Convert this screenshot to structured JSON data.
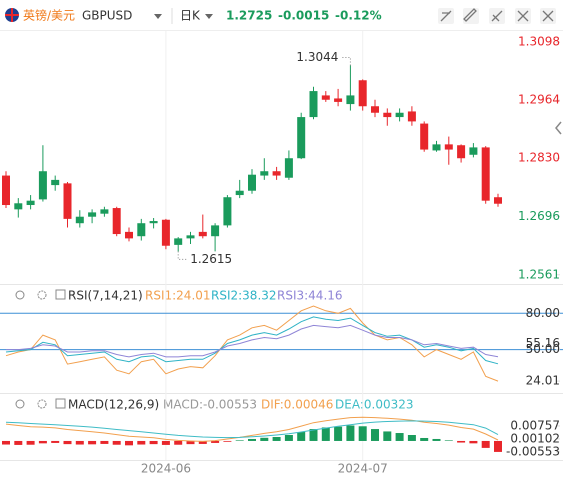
{
  "header": {
    "pair_name": "英镑/美元",
    "symbol": "GBPUSD",
    "period": "日K",
    "price": "1.2725",
    "change": "-0.0015",
    "change_pct": "-0.12%"
  },
  "chart_data": [
    {
      "type": "candlestick",
      "categories": [
        null,
        null,
        null,
        null,
        null,
        null,
        null,
        null,
        null,
        null,
        null,
        null,
        null,
        "2024-06",
        null,
        null,
        null,
        null,
        null,
        null,
        null,
        null,
        null,
        null,
        null,
        null,
        null,
        null,
        null,
        "2024-07",
        null,
        null,
        null,
        null,
        null,
        null,
        null,
        null,
        null,
        null,
        null
      ],
      "open": [
        1.279,
        1.2712,
        1.2722,
        1.2735,
        1.2768,
        1.2772,
        1.268,
        1.2695,
        1.2702,
        1.2715,
        1.266,
        1.265,
        1.268,
        1.2688,
        1.263,
        1.2645,
        1.266,
        1.265,
        1.2675,
        1.2745,
        1.2755,
        1.279,
        1.28,
        1.2785,
        1.283,
        1.2925,
        1.2975,
        1.2968,
        1.2955,
        1.301,
        1.295,
        1.2935,
        1.2925,
        1.2938,
        1.291,
        1.2848,
        1.2862,
        1.286,
        1.2838,
        1.2855,
        1.274
      ],
      "high": [
        1.28,
        1.2738,
        1.2745,
        1.286,
        1.279,
        1.2775,
        1.271,
        1.2712,
        1.2718,
        1.2718,
        1.267,
        1.269,
        1.2692,
        1.269,
        1.2648,
        1.266,
        1.27,
        1.268,
        1.2745,
        1.278,
        1.2805,
        1.283,
        1.281,
        1.2848,
        1.2935,
        1.2995,
        1.2985,
        1.299,
        1.3044,
        1.3012,
        1.2965,
        1.2945,
        1.2945,
        1.295,
        1.2915,
        1.287,
        1.288,
        1.2862,
        1.2865,
        1.2858,
        1.2748
      ],
      "low": [
        1.2715,
        1.2693,
        1.2712,
        1.273,
        1.2755,
        1.267,
        1.267,
        1.268,
        1.2695,
        1.265,
        1.2638,
        1.264,
        1.2668,
        1.262,
        1.2615,
        1.2632,
        1.2645,
        1.2615,
        1.267,
        1.2738,
        1.2748,
        1.278,
        1.278,
        1.278,
        1.2828,
        1.292,
        1.296,
        1.295,
        1.294,
        1.294,
        1.2925,
        1.2905,
        1.2915,
        1.2905,
        1.2845,
        1.2845,
        1.2815,
        1.282,
        1.2832,
        1.2725,
        1.2718
      ],
      "close": [
        1.2722,
        1.2726,
        1.2732,
        1.28,
        1.278,
        1.269,
        1.2695,
        1.2705,
        1.2712,
        1.2655,
        1.2645,
        1.268,
        1.2685,
        1.2628,
        1.2645,
        1.2652,
        1.265,
        1.2675,
        1.274,
        1.2755,
        1.2792,
        1.28,
        1.279,
        1.283,
        1.2925,
        1.2985,
        1.2965,
        1.296,
        1.2975,
        1.295,
        1.2935,
        1.2925,
        1.2935,
        1.2915,
        1.285,
        1.2862,
        1.285,
        1.283,
        1.2855,
        1.2732,
        1.2725
      ],
      "high_label": "1.3044",
      "low_label": "1.2615",
      "up_color": "#1a9b5c",
      "down_color": "#e8262b",
      "ylim": [
        1.2542,
        1.3126
      ],
      "yticks": [
        1.3098,
        1.2964,
        {
          "value": 1.283,
          "label": "1.2830"
        },
        1.2696,
        1.2561
      ]
    },
    {
      "type": "line",
      "title": "RSI(7,14,21)",
      "series": [
        {
          "name": "RSI1:24.01",
          "color": "#f2a04e",
          "values": [
            45,
            48,
            50,
            62,
            58,
            38,
            40,
            42,
            44,
            33,
            30,
            40,
            42,
            30,
            34,
            36,
            35,
            45,
            58,
            62,
            68,
            70,
            66,
            74,
            82,
            86,
            82,
            80,
            84,
            72,
            62,
            58,
            60,
            54,
            44,
            50,
            46,
            42,
            48,
            28,
            24.01
          ]
        },
        {
          "name": "RSI2:38.32",
          "color": "#2fb3c6",
          "values": [
            48,
            49,
            50,
            56,
            54,
            45,
            46,
            47,
            48,
            42,
            40,
            44,
            45,
            40,
            41,
            42,
            42,
            47,
            55,
            58,
            62,
            64,
            62,
            67,
            73,
            77,
            75,
            74,
            76,
            70,
            64,
            61,
            62,
            58,
            52,
            54,
            52,
            49,
            51,
            41,
            38.32
          ]
        },
        {
          "name": "RSI3:44.16",
          "color": "#8f85d6",
          "values": [
            50,
            50,
            51,
            54,
            53,
            48,
            48,
            49,
            49,
            46,
            44,
            46,
            47,
            44,
            44,
            45,
            45,
            48,
            53,
            55,
            58,
            60,
            59,
            62,
            67,
            70,
            69,
            68,
            70,
            66,
            62,
            60,
            60,
            58,
            54,
            55,
            53,
            51,
            52,
            46,
            44.16
          ]
        }
      ],
      "reference_lines": [
        80,
        50
      ],
      "reference_color": "#3d8fd6",
      "ylim": [
        15,
        86
      ],
      "yticks": [
        {
          "value": 80,
          "label": "80.00"
        },
        55.16,
        {
          "value": 50,
          "label": "50.00"
        },
        24.01
      ]
    },
    {
      "type": "macd",
      "title": "MACD(12,26,9)",
      "series": [
        {
          "name": "MACD:-0.00553",
          "kind": "histogram",
          "values": [
            -0.0018,
            -0.002,
            -0.0019,
            -0.0012,
            -0.001,
            -0.0016,
            -0.0018,
            -0.0017,
            -0.0015,
            -0.0019,
            -0.0022,
            -0.0018,
            -0.0016,
            -0.002,
            -0.0019,
            -0.0016,
            -0.0015,
            -0.001,
            -0.0004,
            0.0003,
            0.001,
            0.0016,
            0.002,
            0.003,
            0.0045,
            0.006,
            0.0068,
            0.0072,
            0.0078,
            0.0074,
            0.006,
            0.0048,
            0.004,
            0.003,
            0.0015,
            0.001,
            0.0003,
            -0.0008,
            -0.0012,
            -0.0035,
            -0.00553
          ]
        },
        {
          "name": "DIF:0.00046",
          "color": "#f2a04e",
          "values": [
            0.0085,
            0.0078,
            0.0072,
            0.007,
            0.0066,
            0.0058,
            0.0052,
            0.0046,
            0.004,
            0.0032,
            0.0024,
            0.002,
            0.0016,
            0.0008,
            0.0003,
            0,
            -0.0002,
            0.0002,
            0.001,
            0.0018,
            0.0028,
            0.0038,
            0.0046,
            0.0058,
            0.0075,
            0.0092,
            0.0102,
            0.011,
            0.0118,
            0.012,
            0.0118,
            0.0114,
            0.011,
            0.0104,
            0.0094,
            0.0088,
            0.008,
            0.0068,
            0.006,
            0.0035,
            0.00046
          ]
        },
        {
          "name": "DEA:0.00323",
          "color": "#3fbcc6",
          "values": [
            0.0094,
            0.0092,
            0.0088,
            0.0085,
            0.0082,
            0.0078,
            0.0074,
            0.007,
            0.0064,
            0.0058,
            0.0052,
            0.0046,
            0.004,
            0.0034,
            0.0028,
            0.0024,
            0.002,
            0.0018,
            0.0017,
            0.0018,
            0.0021,
            0.0025,
            0.003,
            0.0036,
            0.0045,
            0.0055,
            0.0065,
            0.0074,
            0.0082,
            0.009,
            0.0095,
            0.0098,
            0.01,
            0.0101,
            0.01,
            0.0098,
            0.0094,
            0.0088,
            0.0082,
            0.0065,
            0.00323
          ]
        }
      ],
      "up_color": "#1a9b5c",
      "down_color": "#e8262b",
      "ylim": [
        -0.0096,
        0.0146
      ],
      "yticks": [
        0.00757,
        0.00102,
        -0.00553
      ]
    }
  ]
}
